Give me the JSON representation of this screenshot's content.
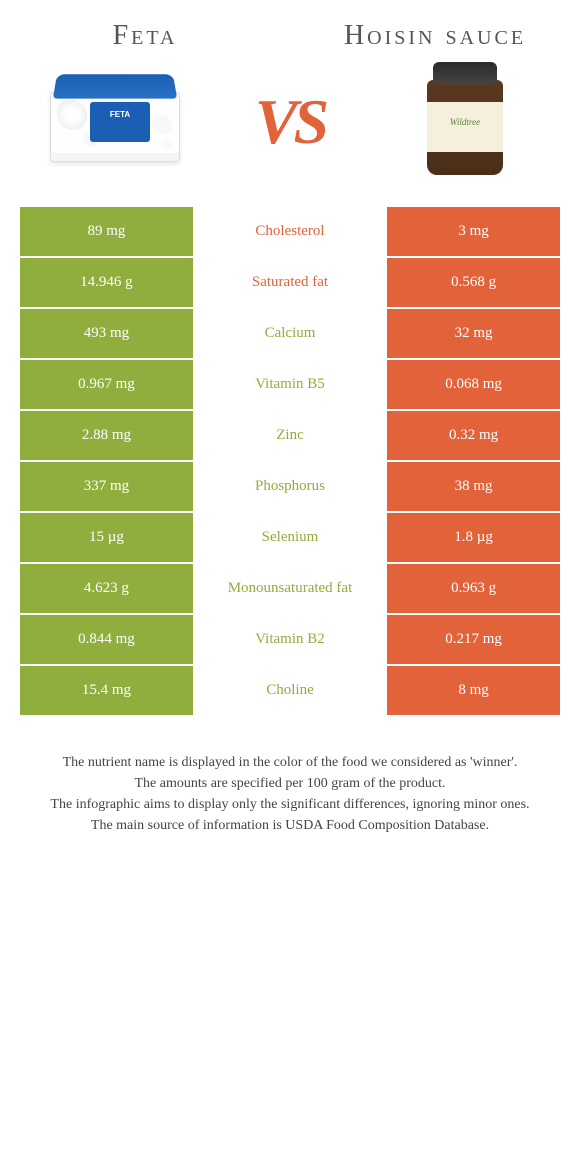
{
  "left": {
    "title": "Feta",
    "color": "#8fae3e",
    "product_label": "FETA"
  },
  "right": {
    "title": "Hoisin sauce",
    "color": "#e2623a",
    "product_label": "Wildtree"
  },
  "vs_text": "VS",
  "rows": [
    {
      "label": "Cholesterol",
      "left": "89 mg",
      "right": "3 mg",
      "winner": "right"
    },
    {
      "label": "Saturated fat",
      "left": "14.946 g",
      "right": "0.568 g",
      "winner": "right"
    },
    {
      "label": "Calcium",
      "left": "493 mg",
      "right": "32 mg",
      "winner": "left"
    },
    {
      "label": "Vitamin B5",
      "left": "0.967 mg",
      "right": "0.068 mg",
      "winner": "left"
    },
    {
      "label": "Zinc",
      "left": "2.88 mg",
      "right": "0.32 mg",
      "winner": "left"
    },
    {
      "label": "Phosphorus",
      "left": "337 mg",
      "right": "38 mg",
      "winner": "left"
    },
    {
      "label": "Selenium",
      "left": "15 µg",
      "right": "1.8 µg",
      "winner": "left"
    },
    {
      "label": "Monounsaturated fat",
      "left": "4.623 g",
      "right": "0.963 g",
      "winner": "left"
    },
    {
      "label": "Vitamin B2",
      "left": "0.844 mg",
      "right": "0.217 mg",
      "winner": "left"
    },
    {
      "label": "Choline",
      "left": "15.4 mg",
      "right": "8 mg",
      "winner": "left"
    }
  ],
  "footer": {
    "line1": "The nutrient name is displayed in the color of the food we considered as 'winner'.",
    "line2": "The amounts are specified per 100 gram of the product.",
    "line3": "The infographic aims to display only the significant differences, ignoring minor ones.",
    "line4": "The main source of information is USDA Food Composition Database."
  }
}
